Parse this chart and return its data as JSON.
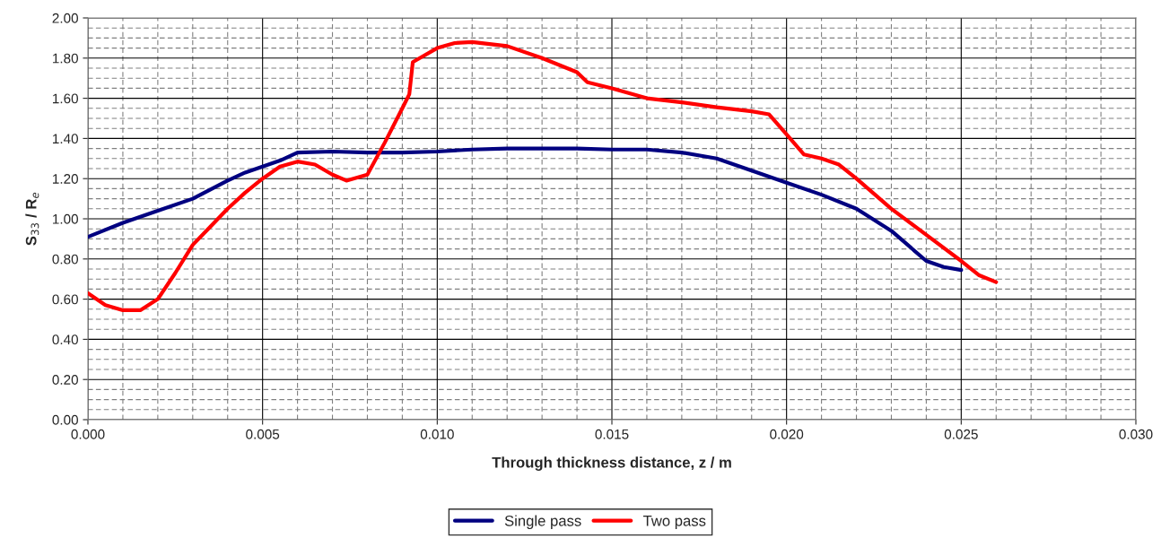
{
  "chart_data": {
    "type": "line",
    "xlabel": "Through thickness distance, z / m",
    "ylabel": "S$_{33}$ / R$_{e}$",
    "xlim": [
      0,
      0.03
    ],
    "ylim": [
      0,
      2
    ],
    "xticks": [
      {
        "value": 0,
        "label": "0.000"
      },
      {
        "value": 0.005,
        "label": "0.005"
      },
      {
        "value": 0.01,
        "label": "0.010"
      },
      {
        "value": 0.015,
        "label": "0.015"
      },
      {
        "value": 0.02,
        "label": "0.020"
      },
      {
        "value": 0.025,
        "label": "0.025"
      },
      {
        "value": 0.03,
        "label": "0.030"
      }
    ],
    "yticks": [
      {
        "value": 0,
        "label": "0.00"
      },
      {
        "value": 0.2,
        "label": "0.20"
      },
      {
        "value": 0.4,
        "label": "0.40"
      },
      {
        "value": 0.6,
        "label": "0.60"
      },
      {
        "value": 0.8,
        "label": "0.80"
      },
      {
        "value": 1.0,
        "label": "1.00"
      },
      {
        "value": 1.2,
        "label": "1.20"
      },
      {
        "value": 1.4,
        "label": "1.40"
      },
      {
        "value": 1.6,
        "label": "1.60"
      },
      {
        "value": 1.8,
        "label": "1.80"
      },
      {
        "value": 2.0,
        "label": "2.00"
      }
    ],
    "grid": true,
    "legend": "bottom",
    "marker": "none",
    "line_style": "solid",
    "series": [
      {
        "name": "Single pass",
        "color": "#000080",
        "x": [
          0,
          0.001,
          0.002,
          0.003,
          0.004,
          0.0045,
          0.005,
          0.0055,
          0.006,
          0.007,
          0.008,
          0.009,
          0.01,
          0.011,
          0.012,
          0.013,
          0.014,
          0.015,
          0.016,
          0.017,
          0.018,
          0.019,
          0.02,
          0.021,
          0.022,
          0.023,
          0.024,
          0.0245,
          0.025
        ],
        "values": [
          0.91,
          0.98,
          1.04,
          1.1,
          1.19,
          1.23,
          1.26,
          1.29,
          1.33,
          1.335,
          1.33,
          1.33,
          1.335,
          1.345,
          1.35,
          1.35,
          1.35,
          1.345,
          1.345,
          1.33,
          1.3,
          1.24,
          1.18,
          1.12,
          1.05,
          0.94,
          0.79,
          0.76,
          0.745
        ]
      },
      {
        "name": "Two pass",
        "color": "#ff0000",
        "x": [
          0,
          0.0005,
          0.001,
          0.0015,
          0.002,
          0.0025,
          0.003,
          0.0035,
          0.004,
          0.0045,
          0.005,
          0.0055,
          0.006,
          0.0065,
          0.007,
          0.0074,
          0.0078,
          0.008,
          0.0085,
          0.009,
          0.0092,
          0.0093,
          0.0095,
          0.01,
          0.0105,
          0.011,
          0.012,
          0.013,
          0.014,
          0.0143,
          0.015,
          0.016,
          0.017,
          0.018,
          0.019,
          0.0195,
          0.02,
          0.0205,
          0.021,
          0.0215,
          0.022,
          0.023,
          0.024,
          0.025,
          0.0255,
          0.026
        ],
        "values": [
          0.63,
          0.57,
          0.545,
          0.545,
          0.6,
          0.73,
          0.87,
          0.96,
          1.05,
          1.13,
          1.2,
          1.26,
          1.285,
          1.27,
          1.22,
          1.19,
          1.21,
          1.22,
          1.38,
          1.55,
          1.62,
          1.78,
          1.8,
          1.85,
          1.875,
          1.88,
          1.86,
          1.8,
          1.73,
          1.68,
          1.65,
          1.6,
          1.58,
          1.555,
          1.535,
          1.52,
          1.42,
          1.32,
          1.3,
          1.27,
          1.2,
          1.05,
          0.92,
          0.79,
          0.72,
          0.685
        ]
      }
    ]
  }
}
